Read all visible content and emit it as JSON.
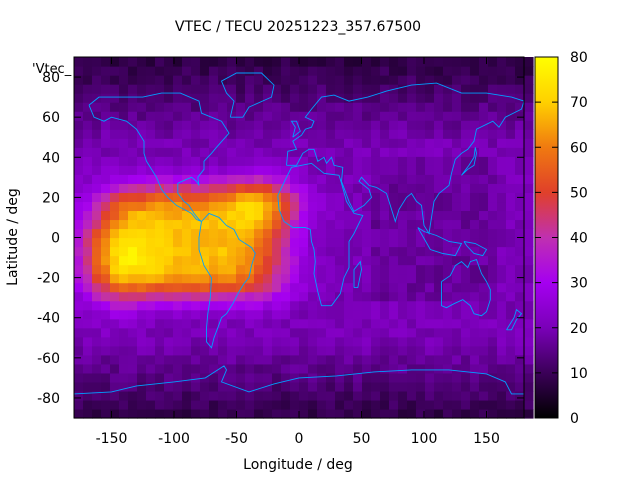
{
  "chart_data": {
    "type": "heatmap",
    "title": "VTEC / TECU 20251223_357.67500",
    "xlabel": "Longitude / deg",
    "ylabel": "Latitude / deg",
    "legend_label": "'Vtec_",
    "xlim": [
      -180,
      180
    ],
    "ylim": [
      -90,
      90
    ],
    "x_ticks": [
      -150,
      -100,
      -50,
      0,
      50,
      100,
      150
    ],
    "y_ticks": [
      -80,
      -60,
      -40,
      -20,
      0,
      20,
      40,
      60,
      80
    ],
    "colorbar": {
      "range": [
        0,
        80
      ],
      "ticks": [
        0,
        10,
        20,
        30,
        40,
        50,
        60,
        70,
        80
      ],
      "colors": [
        "#000000",
        "#3b0058",
        "#7a00b8",
        "#a500f0",
        "#c030b0",
        "#e0402a",
        "#f07a10",
        "#ffd000",
        "#ffff00"
      ]
    },
    "coastline_color": "#00a0ff",
    "description_regions": [
      {
        "name": "americas-anomaly",
        "lon_center": -90,
        "lat_center": 5,
        "peak_value": 72
      },
      {
        "name": "background",
        "value": 20
      },
      {
        "name": "polar-low",
        "value": 10
      }
    ]
  }
}
